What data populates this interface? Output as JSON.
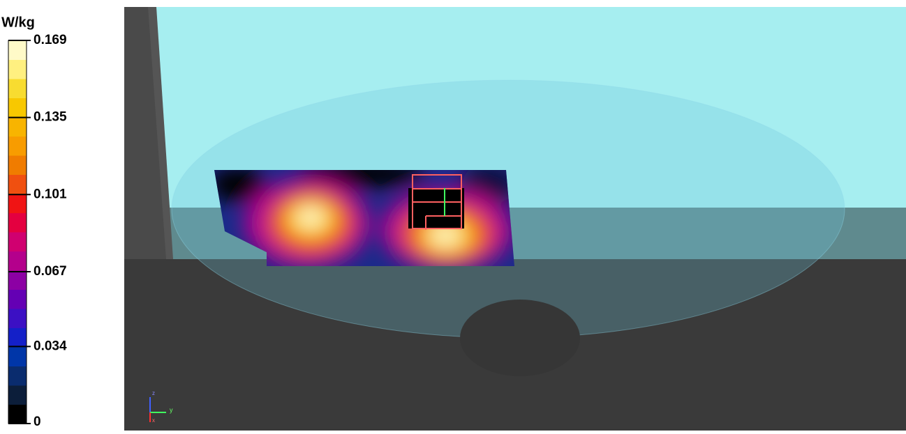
{
  "legend": {
    "unit": "W/kg",
    "ticks": [
      0,
      0.034,
      0.067,
      0.101,
      0.135,
      0.169
    ],
    "colors": [
      "#000000",
      "#0c1e3a",
      "#0a2c6e",
      "#0036a8",
      "#1420c8",
      "#3c10c4",
      "#6400b4",
      "#8c00a4",
      "#b4008c",
      "#d00070",
      "#e40040",
      "#f01414",
      "#f05010",
      "#f07c00",
      "#f89c00",
      "#f8b400",
      "#f8c800",
      "#f8dc30",
      "#fff080",
      "#fffac8"
    ]
  },
  "axes": {
    "z": "z",
    "y": "y",
    "x": "x"
  }
}
